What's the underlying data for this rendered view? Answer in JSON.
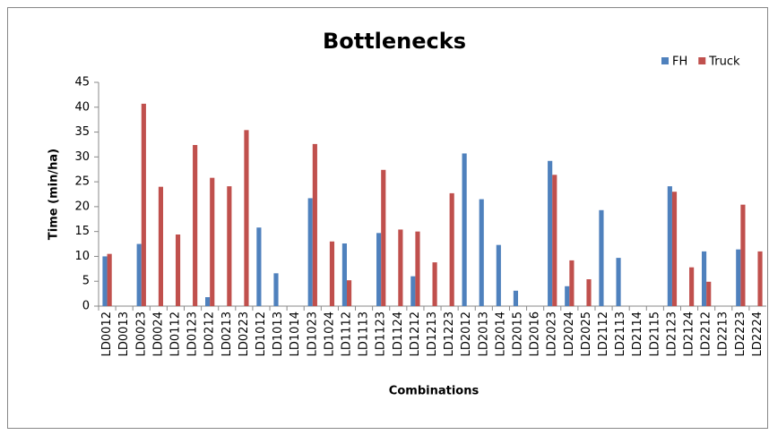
{
  "chart_data": {
    "type": "bar",
    "title": "Bottlenecks",
    "x_label": "Combinations",
    "y_label": "Time (min/ha)",
    "categories": [
      "LD0012",
      "LD0013",
      "LD0023",
      "LD0024",
      "LD0112",
      "LD0123",
      "LD0212",
      "LD0213",
      "LD0223",
      "LD1012",
      "LD1013",
      "LD1014",
      "LD1023",
      "LD1024",
      "LD1112",
      "LD1113",
      "LD1123",
      "LD1124",
      "LD1212",
      "LD1213",
      "LD1223",
      "LD2012",
      "LD2013",
      "LD2014",
      "LD2015",
      "LD2016",
      "LD2023",
      "LD2024",
      "LD2025",
      "LD2112",
      "LD2113",
      "LD2114",
      "LD2115",
      "LD2123",
      "LD2124",
      "LD2212",
      "LD2213",
      "LD2223",
      "LD2224"
    ],
    "series": [
      {
        "name": "FH",
        "color": "#4f81bd",
        "values": [
          10,
          0,
          12.5,
          0,
          0,
          0,
          1.8,
          0,
          0,
          15.8,
          6.6,
          0,
          21.7,
          0,
          12.6,
          0,
          14.7,
          0,
          6,
          0,
          0,
          30.7,
          21.5,
          12.3,
          3.1,
          0,
          29.2,
          4,
          0,
          19.3,
          9.7,
          0,
          0,
          24.1,
          0,
          11,
          0,
          11.4,
          0
        ]
      },
      {
        "name": "Truck",
        "color": "#c0504d",
        "values": [
          10.5,
          0,
          40.7,
          24,
          14.4,
          32.4,
          25.8,
          24.1,
          35.4,
          0,
          0,
          0,
          32.6,
          13,
          5.2,
          0,
          27.4,
          15.4,
          15,
          8.8,
          22.7,
          0,
          0,
          0,
          0,
          0,
          26.4,
          9.2,
          5.4,
          0,
          0,
          0,
          0,
          23,
          7.8,
          4.9,
          0,
          20.4,
          11
        ]
      }
    ],
    "ylim": [
      0,
      45
    ],
    "yticks": [
      0,
      5,
      10,
      15,
      20,
      25,
      30,
      35,
      40,
      45
    ],
    "legend": "top-right"
  }
}
